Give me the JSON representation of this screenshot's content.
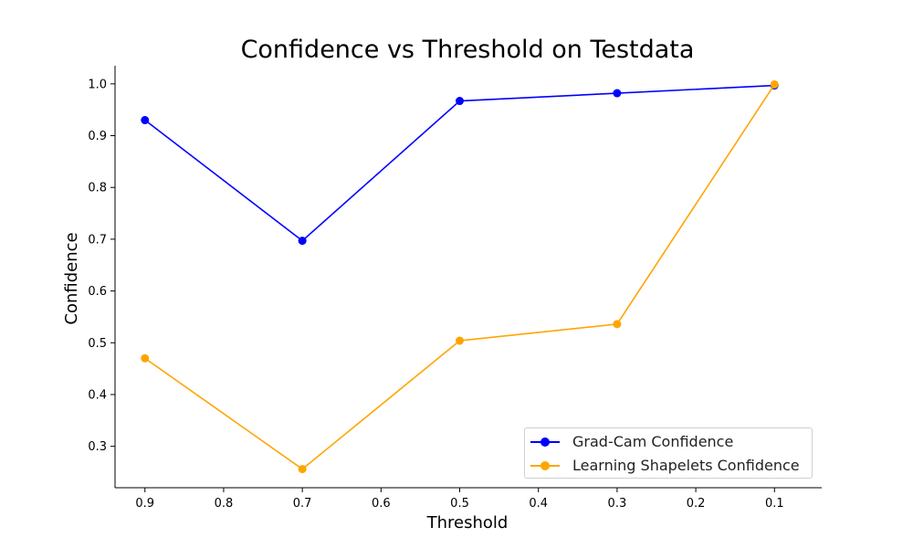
{
  "chart_data": {
    "type": "line",
    "title": "Confidence vs Threshold on Testdata",
    "xlabel": "Threshold",
    "ylabel": "Confidence",
    "x": [
      0.9,
      0.7,
      0.5,
      0.3,
      0.1
    ],
    "xlim": [
      0.938,
      0.04
    ],
    "ylim": [
      0.22,
      1.035
    ],
    "xticks": [
      "0.9",
      "0.8",
      "0.7",
      "0.6",
      "0.5",
      "0.4",
      "0.3",
      "0.2",
      "0.1"
    ],
    "xtick_values": [
      0.9,
      0.8,
      0.7,
      0.6,
      0.5,
      0.4,
      0.3,
      0.2,
      0.1
    ],
    "yticks": [
      "0.3",
      "0.4",
      "0.5",
      "0.6",
      "0.7",
      "0.8",
      "0.9",
      "1.0"
    ],
    "ytick_values": [
      0.3,
      0.4,
      0.5,
      0.6,
      0.7,
      0.8,
      0.9,
      1.0
    ],
    "grid": false,
    "legend_position": "bottom-right",
    "series": [
      {
        "name": "Grad-Cam Confidence",
        "color": "#0000ff",
        "values": [
          0.93,
          0.697,
          0.967,
          0.982,
          0.997
        ]
      },
      {
        "name": "Learning Shapelets Confidence",
        "color": "#ffa500",
        "values": [
          0.47,
          0.256,
          0.504,
          0.536,
          0.999
        ]
      }
    ]
  }
}
